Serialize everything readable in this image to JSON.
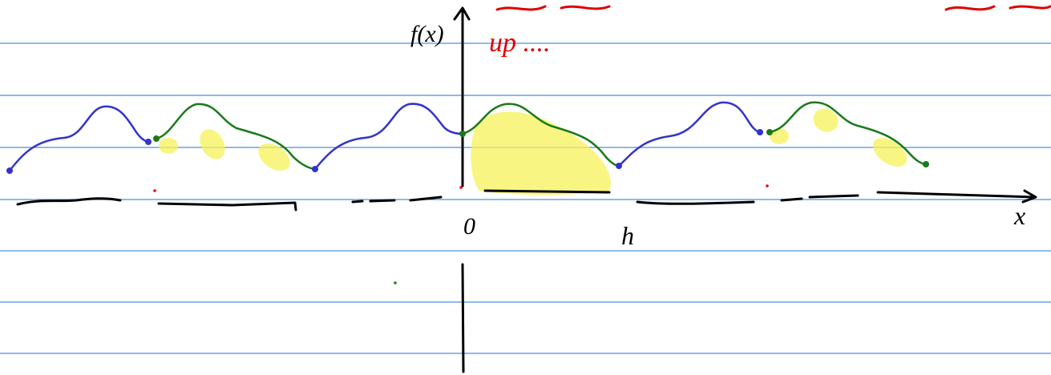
{
  "labels": {
    "y_axis": "f(x)",
    "origin": "0",
    "h": "h",
    "x_axis": "x"
  },
  "annotation": "up ...."
}
